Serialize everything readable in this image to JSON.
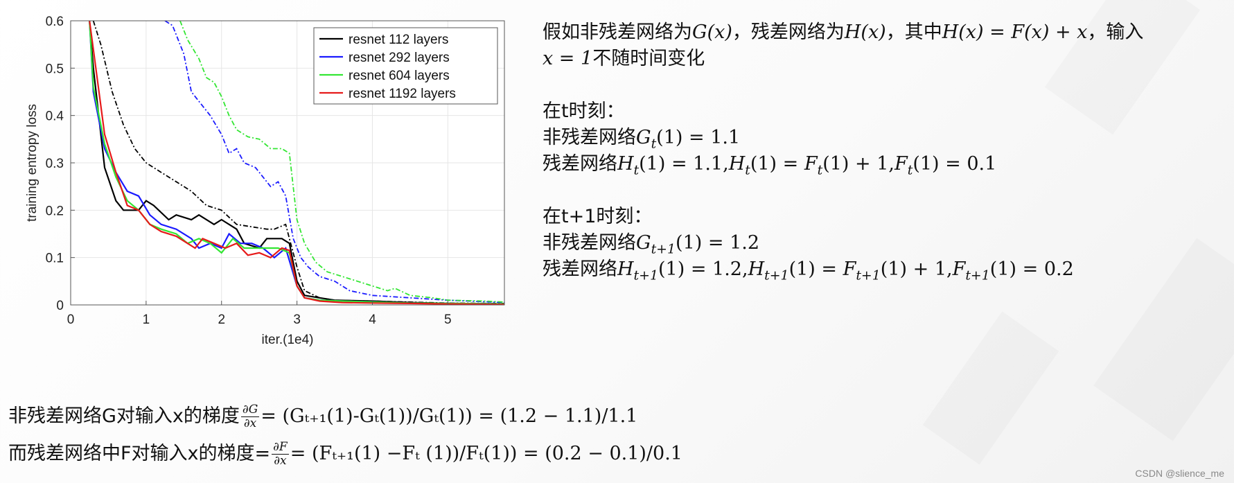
{
  "chart_data": {
    "type": "line",
    "xlabel": "iter.(1e4)",
    "ylabel": "training entropy loss",
    "xlim": [
      0,
      5.75
    ],
    "ylim": [
      0,
      0.6
    ],
    "xticks": [
      "0",
      "1",
      "2",
      "3",
      "4",
      "5"
    ],
    "yticks": [
      "0",
      "0.1",
      "0.2",
      "0.3",
      "0.4",
      "0.5",
      "0.6"
    ],
    "grid": true,
    "legend_position": "top-right",
    "series": [
      {
        "name": "resnet 112 layers",
        "color": "#000000",
        "x": [
          0.25,
          0.3,
          0.45,
          0.6,
          0.7,
          0.9,
          1.0,
          1.1,
          1.3,
          1.4,
          1.6,
          1.7,
          1.9,
          2.0,
          2.2,
          2.3,
          2.5,
          2.6,
          2.8,
          2.9,
          3.0,
          3.1,
          3.3,
          3.5,
          4.0,
          4.5,
          5.0,
          5.75
        ],
        "y": [
          0.6,
          0.5,
          0.29,
          0.22,
          0.2,
          0.2,
          0.22,
          0.21,
          0.18,
          0.19,
          0.18,
          0.19,
          0.17,
          0.18,
          0.16,
          0.13,
          0.12,
          0.14,
          0.14,
          0.13,
          0.05,
          0.02,
          0.015,
          0.01,
          0.008,
          0.005,
          0.003,
          0.002
        ],
        "dashed": [
          {
            "x": [
              0.3,
              0.4,
              0.55,
              0.7,
              0.85,
              1.0,
              1.2,
              1.4,
              1.6,
              1.8,
              2.0,
              2.2,
              2.4,
              2.6,
              2.7,
              2.85,
              2.9,
              3.0,
              3.1,
              3.3,
              3.5,
              4.0,
              4.5,
              5.0,
              5.75
            ],
            "y": [
              0.6,
              0.55,
              0.45,
              0.38,
              0.33,
              0.3,
              0.28,
              0.26,
              0.24,
              0.21,
              0.2,
              0.17,
              0.165,
              0.16,
              0.16,
              0.17,
              0.14,
              0.08,
              0.03,
              0.015,
              0.01,
              0.008,
              0.006,
              0.004,
              0.003
            ]
          }
        ]
      },
      {
        "name": "resnet 292 layers",
        "color": "#1a1aff",
        "x": [
          0.25,
          0.3,
          0.45,
          0.6,
          0.75,
          0.9,
          1.05,
          1.2,
          1.4,
          1.6,
          1.7,
          1.85,
          2.0,
          2.1,
          2.25,
          2.4,
          2.55,
          2.7,
          2.85,
          3.0,
          3.1,
          3.3,
          3.6,
          4.0,
          4.5,
          5.0,
          5.75
        ],
        "y": [
          0.6,
          0.45,
          0.33,
          0.28,
          0.24,
          0.23,
          0.19,
          0.17,
          0.16,
          0.14,
          0.12,
          0.13,
          0.12,
          0.15,
          0.13,
          0.13,
          0.12,
          0.1,
          0.12,
          0.04,
          0.015,
          0.01,
          0.008,
          0.006,
          0.004,
          0.003,
          0.002
        ],
        "dashed": [
          {
            "x": [
              1.25,
              1.35,
              1.5,
              1.6,
              1.7,
              1.85,
              2.0,
              2.1,
              2.2,
              2.3,
              2.45,
              2.55,
              2.65,
              2.75,
              2.85,
              2.95,
              3.05,
              3.15,
              3.3,
              3.5,
              3.7,
              4.0,
              4.5,
              5.0,
              5.75
            ],
            "y": [
              0.6,
              0.59,
              0.53,
              0.45,
              0.43,
              0.4,
              0.36,
              0.32,
              0.33,
              0.3,
              0.29,
              0.27,
              0.25,
              0.26,
              0.23,
              0.14,
              0.1,
              0.08,
              0.06,
              0.05,
              0.03,
              0.02,
              0.015,
              0.01,
              0.005
            ]
          }
        ]
      },
      {
        "name": "resnet 604 layers",
        "color": "#33e633",
        "x": [
          0.25,
          0.3,
          0.45,
          0.6,
          0.75,
          0.9,
          1.05,
          1.2,
          1.4,
          1.55,
          1.7,
          1.85,
          2.0,
          2.15,
          2.3,
          2.45,
          2.6,
          2.75,
          2.9,
          3.0,
          3.1,
          3.3,
          3.6,
          4.0,
          4.5,
          5.0,
          5.75
        ],
        "y": [
          0.6,
          0.46,
          0.34,
          0.27,
          0.22,
          0.2,
          0.17,
          0.16,
          0.15,
          0.13,
          0.14,
          0.13,
          0.11,
          0.14,
          0.12,
          0.12,
          0.12,
          0.12,
          0.11,
          0.04,
          0.015,
          0.01,
          0.008,
          0.006,
          0.004,
          0.003,
          0.002
        ],
        "dashed": [
          {
            "x": [
              1.45,
              1.55,
              1.7,
              1.8,
              1.9,
              2.0,
              2.1,
              2.2,
              2.35,
              2.5,
              2.65,
              2.8,
              2.9,
              3.0,
              3.1,
              3.25,
              3.4,
              3.6,
              3.8,
              4.0,
              4.2,
              4.3,
              4.5,
              4.8,
              5.0,
              5.5,
              5.75
            ],
            "y": [
              0.6,
              0.56,
              0.52,
              0.48,
              0.47,
              0.44,
              0.4,
              0.37,
              0.355,
              0.35,
              0.33,
              0.33,
              0.32,
              0.18,
              0.13,
              0.09,
              0.07,
              0.06,
              0.05,
              0.04,
              0.03,
              0.035,
              0.02,
              0.015,
              0.01,
              0.008,
              0.006
            ]
          }
        ]
      },
      {
        "name": "resnet 1192 layers",
        "color": "#e61a1a",
        "x": [
          0.25,
          0.3,
          0.45,
          0.6,
          0.75,
          0.9,
          1.05,
          1.2,
          1.4,
          1.55,
          1.65,
          1.75,
          1.9,
          2.05,
          2.2,
          2.35,
          2.5,
          2.65,
          2.8,
          2.9,
          3.0,
          3.1,
          3.3,
          3.6,
          4.0,
          4.5,
          5.0,
          5.75
        ],
        "y": [
          0.6,
          0.54,
          0.36,
          0.28,
          0.21,
          0.2,
          0.17,
          0.155,
          0.145,
          0.13,
          0.12,
          0.14,
          0.13,
          0.12,
          0.13,
          0.105,
          0.11,
          0.1,
          0.12,
          0.115,
          0.04,
          0.015,
          0.008,
          0.005,
          0.004,
          0.003,
          0.002,
          0.001
        ]
      }
    ]
  },
  "explanation": {
    "line1_a": "假如非残差网络为",
    "line1_G": "G(x)",
    "line1_b": "，残差网络为",
    "line1_H": "H(x)",
    "line1_c": "，其中",
    "line1_eq": "H(x) = F(x) + x",
    "line1_d": "，输入",
    "line2_x": "x = 1",
    "line2_a": "不随时间变化",
    "t_heading": "在t时刻：",
    "t_nonres_label": "非残差网络",
    "t_nonres_eq": "(1) = 1.1",
    "t_res_label": "残差网络",
    "t_res_eq1": "(1) = 1.1,",
    "t_res_eq2": "(1) = ",
    "t_res_eq3": "(1) + 1,",
    "t_res_eq4": "(1) = 0.1",
    "t1_heading": "在t+1时刻：",
    "t1_nonres_label": "非残差网络",
    "t1_nonres_eq": "(1) = 1.2",
    "t1_res_label": "残差网络",
    "t1_res_eq1": "(1) = 1.2,",
    "t1_res_eq2": "(1) = ",
    "t1_res_eq3": "(1) + 1,",
    "t1_res_eq4": "(1) = 0.2",
    "sub_t": "t",
    "sub_t1": "t+1"
  },
  "gradients": {
    "g_label": "非残差网络G对输入x的梯度",
    "g_frac_top": "∂G",
    "g_frac_bottom": "∂x",
    "g_eq": "= (Gₜ₊₁(1)-Gₜ(1))/Gₜ(1)) = (1.2 − 1.1)/1.1",
    "f_label": "而残差网络中F对输入x的梯度=",
    "f_frac_top": "∂F",
    "f_frac_bottom": "∂x",
    "f_eq": "= (Fₜ₊₁(1) −Fₜ (1))/Fₜ(1)) = (0.2 − 0.1)/0.1"
  },
  "watermark": "CSDN @slience_me"
}
